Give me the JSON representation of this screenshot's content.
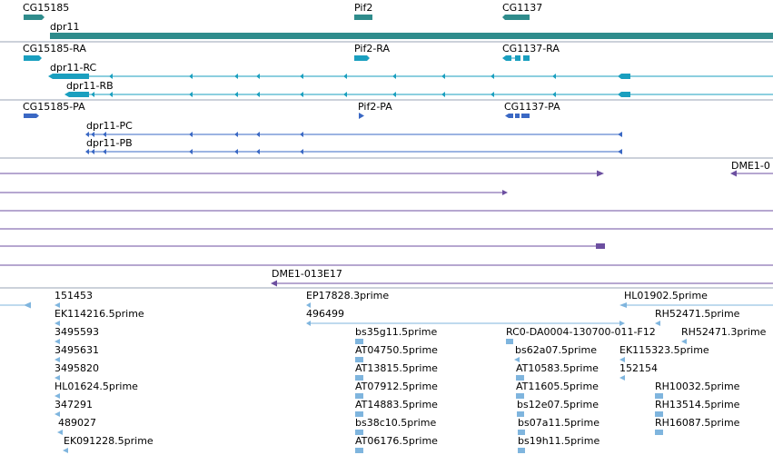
{
  "colors": {
    "gene": "#2f8c8c",
    "transcript": "#1a9fbf",
    "protein": "#3a68c4",
    "clone": "#6c4fa0",
    "est": "#7fb5de",
    "separator": "#9aa3b5"
  },
  "genes": {
    "items": [
      {
        "label": "CG15185"
      },
      {
        "label": "Pif2"
      },
      {
        "label": "CG1137"
      },
      {
        "label": "dpr11"
      }
    ]
  },
  "transcripts": {
    "items": [
      {
        "label": "CG15185-RA"
      },
      {
        "label": "Pif2-RA"
      },
      {
        "label": "CG1137-RA"
      },
      {
        "label": "dpr11-RC"
      },
      {
        "label": "dpr11-RB"
      }
    ]
  },
  "proteins": {
    "items": [
      {
        "label": "CG15185-PA"
      },
      {
        "label": "Pif2-PA"
      },
      {
        "label": "CG1137-PA"
      },
      {
        "label": "dpr11-PC"
      },
      {
        "label": "dpr11-PB"
      }
    ]
  },
  "clones": {
    "items": [
      {
        "label": "DME1-0"
      },
      {
        "label": "DME1-013E17"
      }
    ]
  },
  "ests": {
    "items": [
      {
        "label": "151453"
      },
      {
        "label": "EK114216.5prime"
      },
      {
        "label": "3495593"
      },
      {
        "label": "3495631"
      },
      {
        "label": "3495820"
      },
      {
        "label": "HL01624.5prime"
      },
      {
        "label": "347291"
      },
      {
        "label": "489027"
      },
      {
        "label": "EK091228.5prime"
      },
      {
        "label": "EP17828.3prime"
      },
      {
        "label": "496499"
      },
      {
        "label": "bs35g11.5prime"
      },
      {
        "label": "AT04750.5prime"
      },
      {
        "label": "AT13815.5prime"
      },
      {
        "label": "AT07912.5prime"
      },
      {
        "label": "AT14883.5prime"
      },
      {
        "label": "bs38c10.5prime"
      },
      {
        "label": "AT06176.5prime"
      },
      {
        "label": "RC0-DA0004-130700-011-F12"
      },
      {
        "label": "bs62a07.5prime"
      },
      {
        "label": "AT10583.5prime"
      },
      {
        "label": "AT11605.5prime"
      },
      {
        "label": "bs12e07.5prime"
      },
      {
        "label": "bs07a11.5prime"
      },
      {
        "label": "bs19h11.5prime"
      },
      {
        "label": "HL01902.5prime"
      },
      {
        "label": "RH52471.5prime"
      },
      {
        "label": "RH52471.3prime"
      },
      {
        "label": "EK115323.5prime"
      },
      {
        "label": "152154"
      },
      {
        "label": "RH10032.5prime"
      },
      {
        "label": "RH13514.5prime"
      },
      {
        "label": "RH16087.5prime"
      }
    ]
  }
}
